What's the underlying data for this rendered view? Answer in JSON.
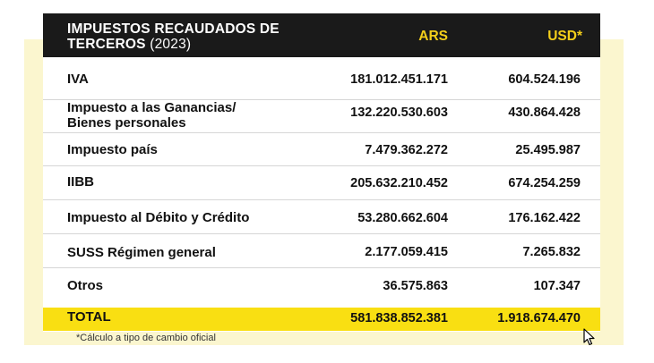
{
  "table": {
    "title_main": "IMPUESTOS RECAUDADOS DE TERCEROS",
    "title_year": "(2023)",
    "col_ars": "ARS",
    "col_usd": "USD*",
    "rows": [
      {
        "label": "IVA",
        "ars": "181.012.451.171",
        "usd": "604.524.196"
      },
      {
        "label": "Impuesto a las Ganancias/ Bienes personales",
        "ars": "132.220.530.603",
        "usd": "430.864.428"
      },
      {
        "label": "Impuesto país",
        "ars": "7.479.362.272",
        "usd": "25.495.987"
      },
      {
        "label": "IIBB",
        "ars": "205.632.210.452",
        "usd": "674.254.259"
      },
      {
        "label": "Impuesto al Débito y Crédito",
        "ars": "53.280.662.604",
        "usd": "176.162.422"
      },
      {
        "label": "SUSS Régimen general",
        "ars": "2.177.059.415",
        "usd": "7.265.832"
      },
      {
        "label": "Otros",
        "ars": "36.575.863",
        "usd": "107.347"
      }
    ],
    "total": {
      "label": "TOTAL",
      "ars": "581.838.852.381",
      "usd": "1.918.674.470"
    },
    "footnote": "*Cálculo a tipo de cambio oficial"
  },
  "colors": {
    "header_bg": "#1a1a1a",
    "header_accent": "#f4cf1a",
    "total_bg": "#f9df12",
    "frame_bg": "#fbf6cf"
  },
  "icons": {
    "cursor": "mouse-pointer-icon"
  }
}
